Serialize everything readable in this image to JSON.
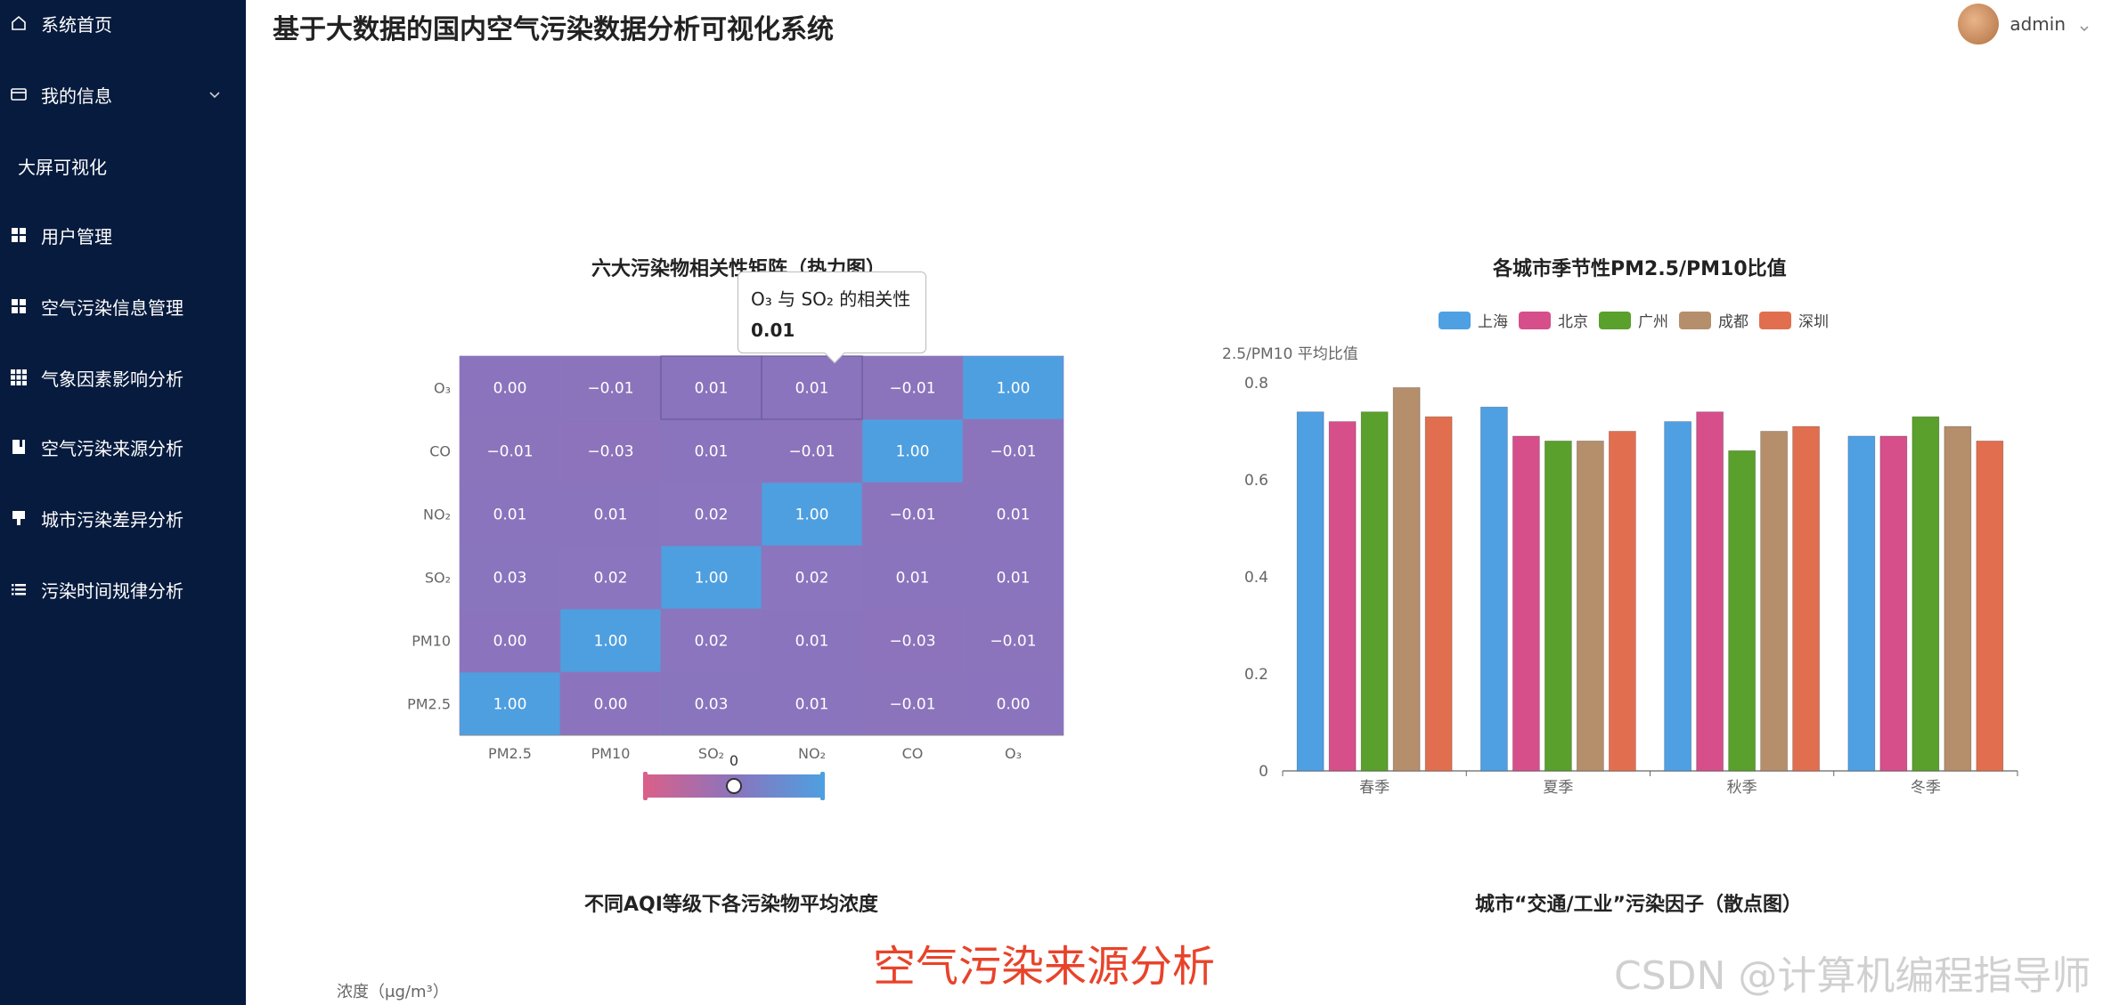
{
  "app": {
    "title": "基于大数据的国内空气污染数据分析可视化系统",
    "user": {
      "name": "admin"
    }
  },
  "sidebar": {
    "items": [
      {
        "label": "系统首页",
        "icon": "home-icon"
      },
      {
        "label": "我的信息",
        "icon": "wallet-icon",
        "expandable": true
      },
      {
        "label": "大屏可视化"
      },
      {
        "label": "用户管理",
        "icon": "grid-icon"
      },
      {
        "label": "空气污染信息管理",
        "icon": "grid-icon"
      },
      {
        "label": "气象因素影响分析",
        "icon": "apps-icon"
      },
      {
        "label": "空气污染来源分析",
        "icon": "notebook-icon",
        "active": true
      },
      {
        "label": "城市污染差异分析",
        "icon": "pin-icon"
      },
      {
        "label": "污染时间规律分析",
        "icon": "list-icon"
      }
    ]
  },
  "charts": {
    "heatmap_title": "六大污染物相关性矩阵（热力图）",
    "bar_title": "各城市季节性PM2.5/PM10比值",
    "aqi_title": "不同AQI等级下各污染物平均浓度",
    "scatter_title": "城市“交通/工业”污染因子（散点图）",
    "aqi_ylabel": "浓度（μg/m³）"
  },
  "tooltip": {
    "line1": "O₃ 与 SO₂ 的相关性",
    "line2": "0.01"
  },
  "overlay": {
    "caption": "空气污染来源分析",
    "watermark": "CSDN @计算机编程指导师"
  },
  "chart_data": [
    {
      "type": "heatmap",
      "x_categories": [
        "PM2.5",
        "PM10",
        "SO₂",
        "NO₂",
        "CO",
        "O₃"
      ],
      "y_categories": [
        "PM2.5",
        "PM10",
        "SO₂",
        "NO₂",
        "CO",
        "O₃"
      ],
      "values": [
        [
          1.0,
          0.0,
          0.03,
          0.01,
          -0.01,
          0.0
        ],
        [
          0.0,
          1.0,
          0.02,
          0.01,
          -0.03,
          -0.01
        ],
        [
          0.03,
          0.02,
          1.0,
          0.02,
          0.01,
          0.01
        ],
        [
          0.01,
          0.01,
          0.02,
          1.0,
          -0.01,
          0.01
        ],
        [
          -0.01,
          -0.03,
          0.01,
          -0.01,
          1.0,
          -0.01
        ],
        [
          0.0,
          -0.01,
          0.01,
          0.01,
          -0.01,
          1.0
        ]
      ],
      "visual_map_label": "0",
      "colors": {
        "low": "#d9608a",
        "mid": "#8b74bd",
        "high": "#4e9fe0"
      }
    },
    {
      "type": "bar",
      "ylabel": "2.5/PM10 平均比值",
      "ylim": [
        0,
        0.8
      ],
      "yticks": [
        "0",
        "0.2",
        "0.4",
        "0.6",
        "0.8"
      ],
      "categories": [
        "春季",
        "夏季",
        "秋季",
        "冬季"
      ],
      "legend_position": "top-center",
      "series": [
        {
          "name": "上海",
          "color": "#4f9fe3",
          "values": [
            0.74,
            0.75,
            0.72,
            0.69
          ]
        },
        {
          "name": "北京",
          "color": "#d64f8b",
          "values": [
            0.72,
            0.69,
            0.74,
            0.69
          ]
        },
        {
          "name": "广州",
          "color": "#5aa02c",
          "values": [
            0.74,
            0.68,
            0.66,
            0.73
          ]
        },
        {
          "name": "成都",
          "color": "#b58e6c",
          "values": [
            0.79,
            0.68,
            0.7,
            0.71
          ]
        },
        {
          "name": "深圳",
          "color": "#e16f4f",
          "values": [
            0.73,
            0.7,
            0.71,
            0.68
          ]
        }
      ]
    }
  ]
}
